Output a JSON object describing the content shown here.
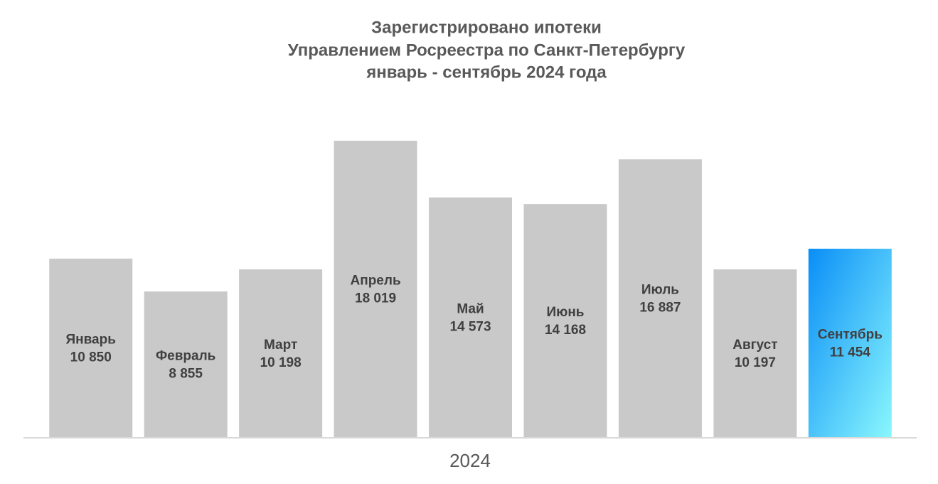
{
  "chart_data": {
    "type": "bar",
    "title": [
      "Зарегистрировано ипотеки",
      "Управлением Росреестра по Санкт-Петербургу",
      "январь - сентябрь 2024 года"
    ],
    "x_label": "2024",
    "categories": [
      "Январь",
      "Февраль",
      "Март",
      "Апрель",
      "Май",
      "Июнь",
      "Июль",
      "Август",
      "Сентябрь"
    ],
    "values": [
      10850,
      8855,
      10198,
      18019,
      14573,
      14168,
      16887,
      10197,
      11454
    ],
    "value_labels": [
      "10 850",
      "8 855",
      "10 198",
      "18 019",
      "14 573",
      "14 168",
      "16 887",
      "10 197",
      "11 454"
    ],
    "colors": [
      "#c9c9c9",
      "#c9c9c9",
      "#c9c9c9",
      "#c9c9c9",
      "#c9c9c9",
      "#c9c9c9",
      "#c9c9c9",
      "#c9c9c9",
      [
        "#0a8ef7",
        "#8af7fd"
      ]
    ]
  }
}
